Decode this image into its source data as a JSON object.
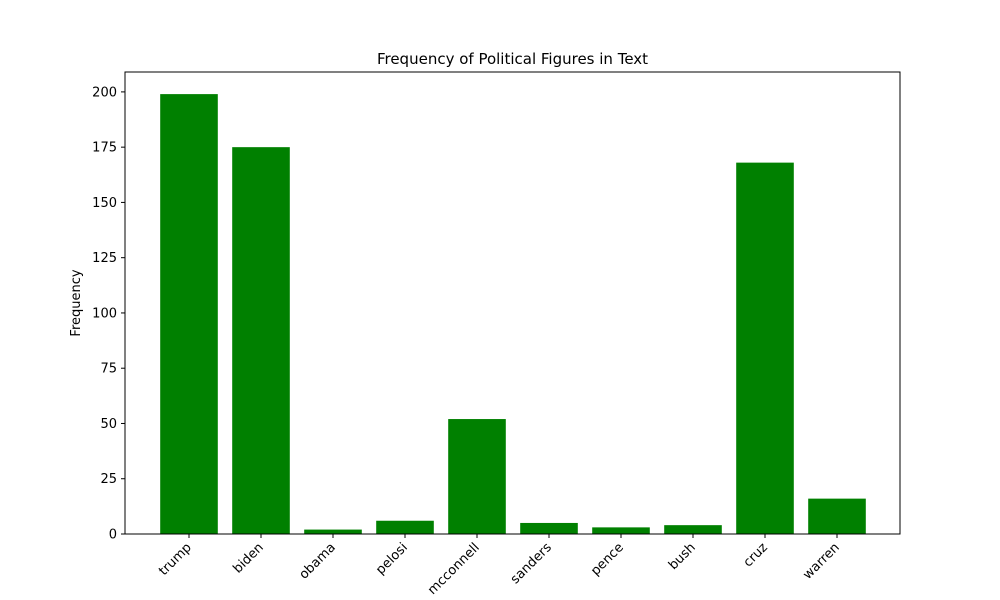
{
  "chart_data": {
    "type": "bar",
    "title": "Frequency of Political Figures in Text",
    "xlabel": "",
    "ylabel": "Frequency",
    "categories": [
      "trump",
      "biden",
      "obama",
      "pelosi",
      "mcconnell",
      "sanders",
      "pence",
      "bush",
      "cruz",
      "warren"
    ],
    "values": [
      199,
      175,
      2,
      6,
      52,
      5,
      3,
      4,
      168,
      16
    ],
    "ylim": [
      0,
      209
    ],
    "yticks": [
      0,
      25,
      50,
      75,
      100,
      125,
      150,
      175,
      200
    ],
    "bar_color": "#008000",
    "grid": false
  }
}
